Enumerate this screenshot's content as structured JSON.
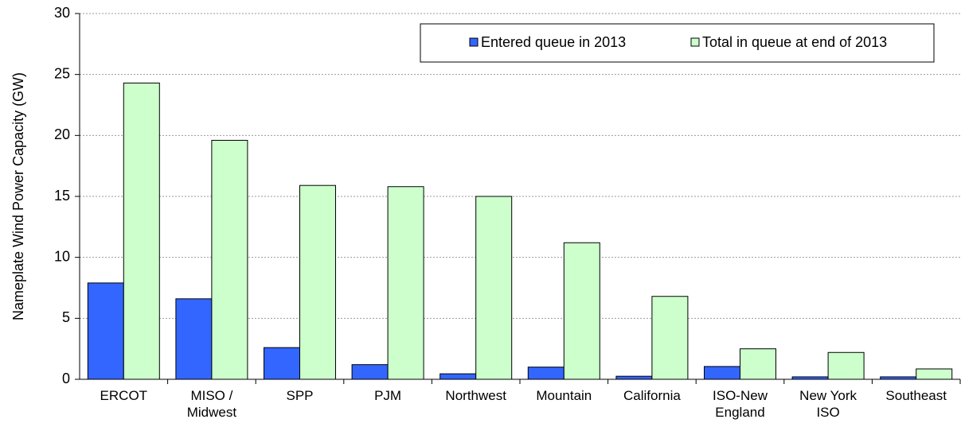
{
  "chart_data": {
    "type": "bar",
    "ylabel": "Nameplate Wind Power Capacity (GW)",
    "categories": [
      "ERCOT",
      "MISO / Midwest",
      "SPP",
      "PJM",
      "Northwest",
      "Mountain",
      "California",
      "ISO-New England",
      "New York ISO",
      "Southeast"
    ],
    "series": [
      {
        "name": "Entered queue in 2013",
        "color": "#3366ff",
        "values": [
          7.9,
          6.6,
          2.6,
          1.2,
          0.45,
          1.0,
          0.25,
          1.05,
          0.2,
          0.2
        ]
      },
      {
        "name": "Total in queue at end of 2013",
        "color": "#ccffcc",
        "values": [
          24.3,
          19.6,
          15.9,
          15.8,
          15.0,
          11.2,
          6.8,
          2.5,
          2.2,
          0.85
        ]
      }
    ],
    "ylim": [
      0,
      30
    ],
    "yticks": [
      0,
      5,
      10,
      15,
      20,
      25,
      30
    ],
    "grid": true,
    "legend": "top-right"
  }
}
